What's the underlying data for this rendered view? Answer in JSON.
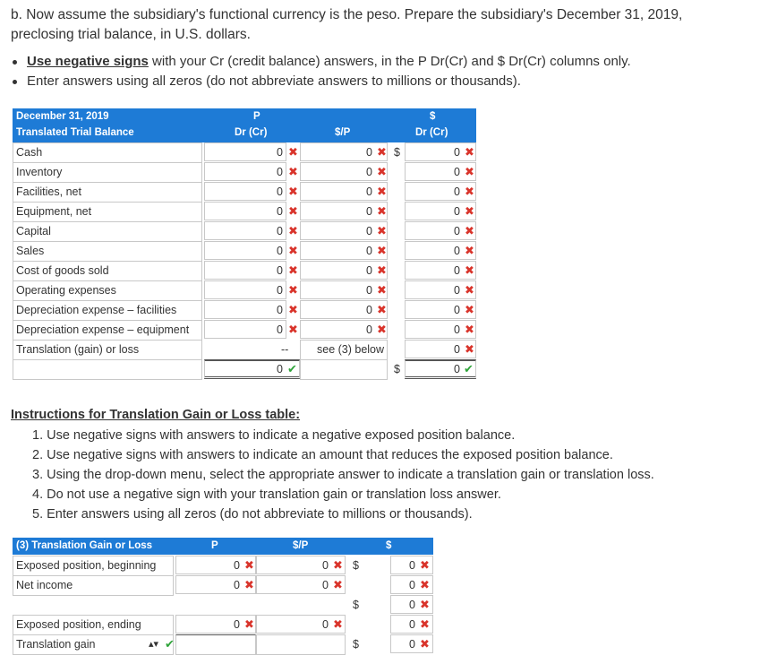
{
  "intro": {
    "text": "b. Now assume the subsidiary's functional currency is the peso. Prepare the subsidiary's December 31, 2019, preclosing trial balance, in U.S. dollars."
  },
  "bullets": {
    "b1_bold": "Use negative signs",
    "b1_rest": " with your Cr (credit balance) answers, in the P Dr(Cr) and $ Dr(Cr) columns only.",
    "b2": "Enter answers using all zeros (do not abbreviate answers to millions or thousands)."
  },
  "trial": {
    "header": {
      "title1": "December 31, 2019",
      "title2": "Translated Trial Balance",
      "p_top": "P",
      "p_bottom": "Dr (Cr)",
      "rate": "$/P",
      "d_top": "$",
      "d_bottom": "Dr (Cr)"
    },
    "rows": [
      {
        "label": "Cash",
        "p": "0",
        "rate": "0",
        "d": "0"
      },
      {
        "label": "Inventory",
        "p": "0",
        "rate": "0",
        "d": "0"
      },
      {
        "label": "Facilities, net",
        "p": "0",
        "rate": "0",
        "d": "0"
      },
      {
        "label": "Equipment, net",
        "p": "0",
        "rate": "0",
        "d": "0"
      },
      {
        "label": "Capital",
        "p": "0",
        "rate": "0",
        "d": "0"
      },
      {
        "label": "Sales",
        "p": "0",
        "rate": "0",
        "d": "0"
      },
      {
        "label": "Cost of goods sold",
        "p": "0",
        "rate": "0",
        "d": "0"
      },
      {
        "label": "Operating expenses",
        "p": "0",
        "rate": "0",
        "d": "0"
      },
      {
        "label": "Depreciation expense – facilities",
        "p": "0",
        "rate": "0",
        "d": "0"
      },
      {
        "label": "Depreciation expense – equipment",
        "p": "0",
        "rate": "0",
        "d": "0"
      }
    ],
    "translation_row": {
      "label": "Translation (gain) or loss",
      "p": "--",
      "rate": "see (3) below",
      "d": "0"
    },
    "total_row": {
      "p": "0",
      "d": "0"
    },
    "dollar_sign": "$"
  },
  "instructions": {
    "title": "Instructions for Translation Gain or Loss table:",
    "items": [
      "1. Use negative signs with answers to indicate a negative exposed position balance.",
      "2. Use negative signs with answers to indicate an amount that reduces the exposed position balance.",
      "3. Using the drop-down menu, select the appropriate answer to indicate a translation gain or translation loss.",
      "4. Do not use a negative sign with your translation gain or translation loss answer.",
      "5. Enter answers using all zeros (do not abbreviate to millions or thousands)."
    ]
  },
  "gain": {
    "header": {
      "title": "(3) Translation Gain or Loss",
      "p": "P",
      "rate": "$/P",
      "d": "$"
    },
    "rows": [
      {
        "label": "Exposed position, beginning",
        "p": "0",
        "rate": "0",
        "d": "0"
      },
      {
        "label": "Net income",
        "p": "0",
        "rate": "0",
        "d": "0"
      },
      {
        "label": "",
        "p": "",
        "rate": "",
        "d": "0"
      },
      {
        "label": "Exposed position, ending",
        "p": "0",
        "rate": "0",
        "d": "0"
      },
      {
        "label": "Translation gain",
        "p": "",
        "rate": "",
        "d": "0"
      }
    ],
    "dropdown_value": "Translation gain"
  },
  "colors": {
    "header_blue": "#1e7bd6",
    "wrong_red": "#d9342b",
    "correct_green": "#2fa43a"
  },
  "icons": {
    "wrong": "x-mark-icon",
    "correct": "check-mark-icon",
    "dropdown": "updown-arrow-icon"
  }
}
